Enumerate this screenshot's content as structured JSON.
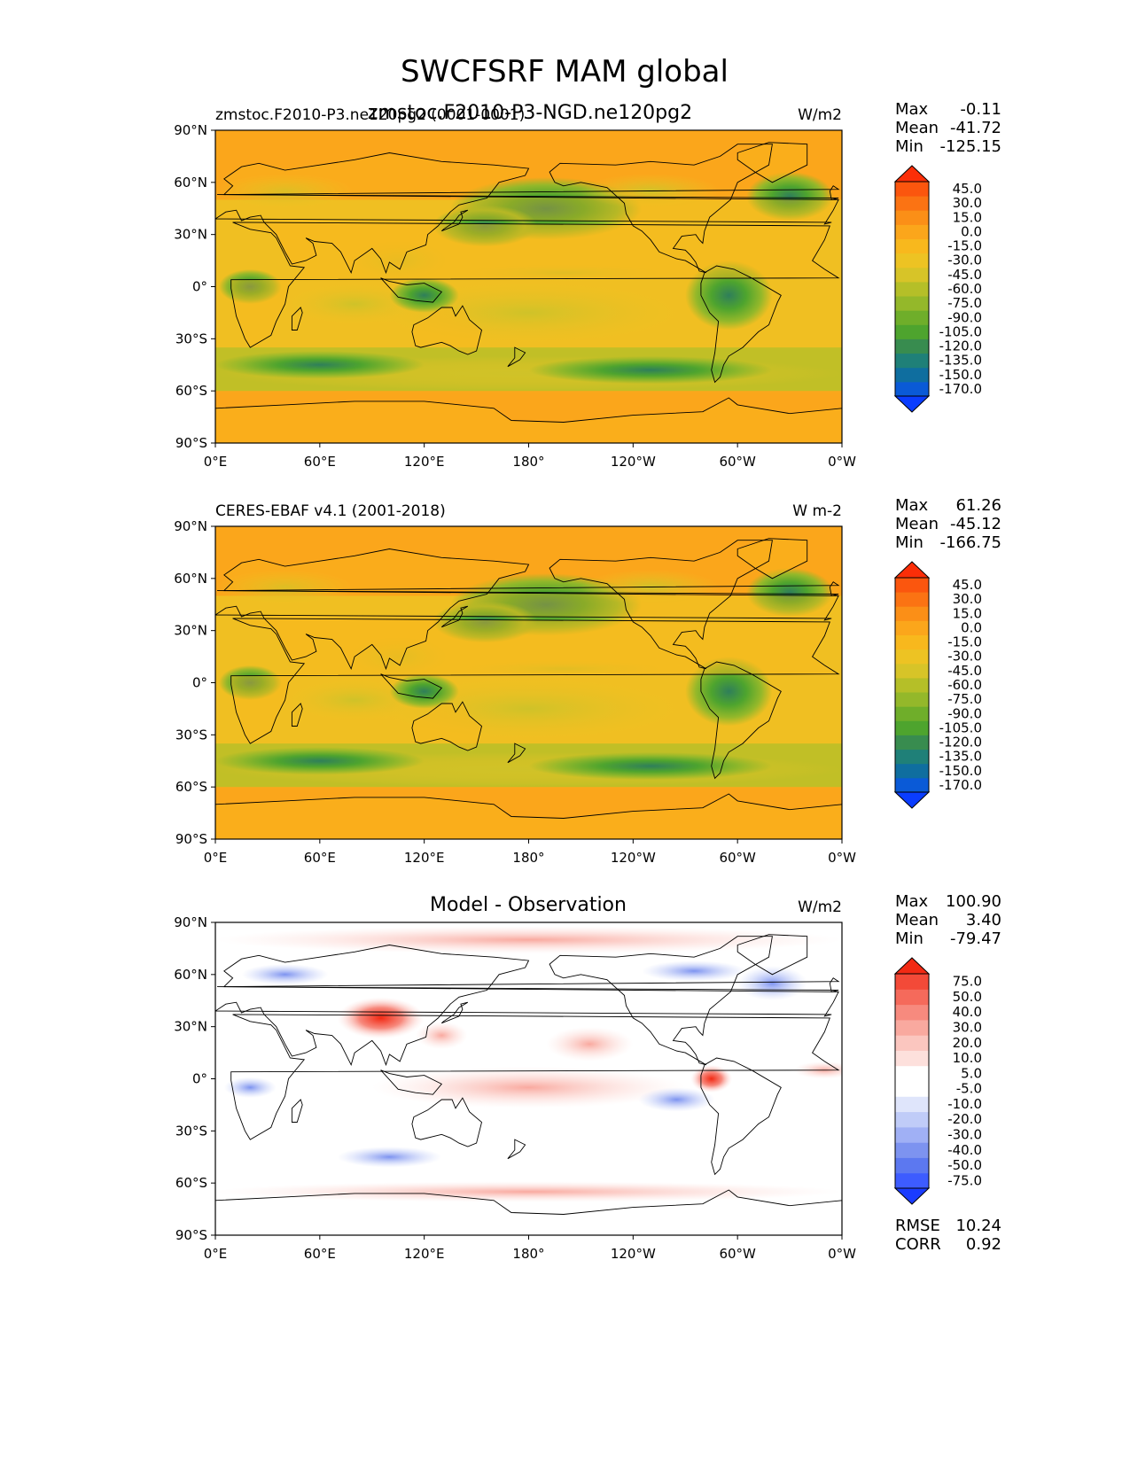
{
  "figure": {
    "title": "SWCFSRF MAM global"
  },
  "colors": {
    "ocean_fill": "#fba61b",
    "coast": "#000000",
    "test_ref_cmap": [
      "#0a3dff",
      "#0a5ad7",
      "#0f6e9f",
      "#1f8078",
      "#388c4f",
      "#4ea42e",
      "#6fae2a",
      "#94b82a",
      "#b5bf28",
      "#d7c428",
      "#edc323",
      "#f8b81d",
      "#fba61b",
      "#fb8f17",
      "#fb7313",
      "#fb560e",
      "#fb2e08"
    ],
    "diff_cmap": [
      "#1a3cff",
      "#3d5cff",
      "#5c78f0",
      "#7d93f0",
      "#a0b0f5",
      "#c0ccf8",
      "#dfe5fb",
      "#ffffff",
      "#ffffff",
      "#fde0dc",
      "#fbc6bf",
      "#f9a99f",
      "#f78a7e",
      "#f56a5b",
      "#f34a38",
      "#f22a14"
    ]
  },
  "axes_ticks": {
    "x": [
      "0°E",
      "60°E",
      "120°E",
      "180°",
      "120°W",
      "60°W",
      "0°W"
    ],
    "y": [
      "90°N",
      "60°N",
      "30°N",
      "0°",
      "30°S",
      "60°S",
      "90°S"
    ]
  },
  "colorbar_levels_main": [
    "45.0",
    "30.0",
    "15.0",
    "0.0",
    "-15.0",
    "-30.0",
    "-45.0",
    "-60.0",
    "-75.0",
    "-90.0",
    "-105.0",
    "-120.0",
    "-135.0",
    "-150.0",
    "-170.0"
  ],
  "colorbar_levels_diff": [
    "75.0",
    "50.0",
    "40.0",
    "30.0",
    "20.0",
    "10.0",
    "5.0",
    "-5.0",
    "-10.0",
    "-20.0",
    "-30.0",
    "-40.0",
    "-50.0",
    "-75.0"
  ],
  "chart_data": [
    {
      "type": "heatmap",
      "panel": "test",
      "title_left": "zmstoc.F2010-P3.ne120pg2 (0001-0001)",
      "title_center": "zmstoc.F2010-P3-NGD.ne120pg2",
      "units": "W/m2",
      "stats": {
        "max": "-0.11",
        "mean": "-41.72",
        "min": "-125.15"
      },
      "stats_labels": [
        "Max",
        "Mean",
        "Min"
      ]
    },
    {
      "type": "heatmap",
      "panel": "reference",
      "title_left": "CERES-EBAF v4.1 (2001-2018)",
      "units": "W m-2",
      "stats": {
        "max": "61.26",
        "mean": "-45.12",
        "min": "-166.75"
      },
      "stats_labels": [
        "Max",
        "Mean",
        "Min"
      ]
    },
    {
      "type": "heatmap",
      "panel": "difference",
      "title_center": "Model - Observation",
      "units": "W/m2",
      "stats": {
        "max": "100.90",
        "mean": "3.40",
        "min": "-79.47"
      },
      "stats_labels": [
        "Max",
        "Mean",
        "Min"
      ],
      "metrics": {
        "rmse_label": "RMSE",
        "rmse": "10.24",
        "corr_label": "CORR",
        "corr": "0.92"
      }
    }
  ]
}
